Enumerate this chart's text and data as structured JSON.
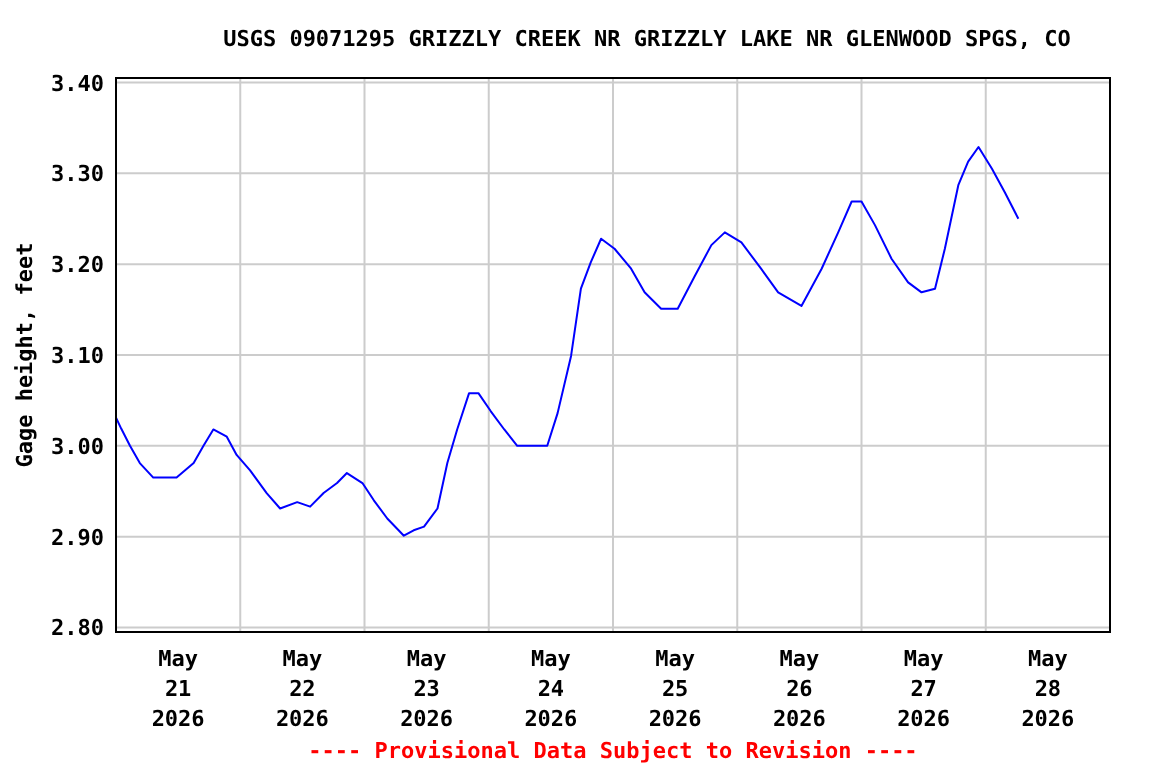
{
  "chart_data": {
    "type": "line",
    "title": "USGS 09071295 GRIZZLY CREEK NR GRIZZLY LAKE NR GLENWOOD SPGS, CO",
    "ylabel": "Gage height, feet",
    "annotations": [
      "---- Provisional Data Subject to Revision ----"
    ],
    "x": [
      "2026-05-21T00:00",
      "2026-05-21T01:00",
      "2026-05-21T02:42",
      "2026-05-21T04:36",
      "2026-05-21T07:12",
      "2026-05-21T11:42",
      "2026-05-21T15:00",
      "2026-05-21T16:54",
      "2026-05-21T18:48",
      "2026-05-21T21:24",
      "2026-05-21T23:18",
      "2026-05-22T01:54",
      "2026-05-22T05:06",
      "2026-05-22T07:42",
      "2026-05-22T11:00",
      "2026-05-22T13:30",
      "2026-05-22T16:06",
      "2026-05-22T18:42",
      "2026-05-22T20:36",
      "2026-05-22T23:36",
      "2026-05-23T01:48",
      "2026-05-23T04:24",
      "2026-05-23T07:36",
      "2026-05-23T09:30",
      "2026-05-23T11:30",
      "2026-05-23T14:06",
      "2026-05-23T16:00",
      "2026-05-23T17:54",
      "2026-05-23T20:12",
      "2026-05-23T22:00",
      "2026-05-24T00:24",
      "2026-05-24T03:00",
      "2026-05-24T05:30",
      "2026-05-24T11:18",
      "2026-05-24T13:18",
      "2026-05-24T15:54",
      "2026-05-24T17:48",
      "2026-05-24T19:42",
      "2026-05-24T21:42",
      "2026-05-25T00:18",
      "2026-05-25T03:30",
      "2026-05-25T06:06",
      "2026-05-25T09:18",
      "2026-05-25T12:30",
      "2026-05-25T15:48",
      "2026-05-25T19:00",
      "2026-05-25T21:36",
      "2026-05-26T00:48",
      "2026-05-26T04:36",
      "2026-05-26T07:54",
      "2026-05-26T12:24",
      "2026-05-26T16:18",
      "2026-05-26T19:30",
      "2026-05-26T22:06",
      "2026-05-27T00:00",
      "2026-05-27T02:36",
      "2026-05-27T05:48",
      "2026-05-27T09:00",
      "2026-05-27T11:36",
      "2026-05-27T14:12",
      "2026-05-27T16:06",
      "2026-05-27T18:42",
      "2026-05-27T20:36",
      "2026-05-27T22:36",
      "2026-05-28T01:12",
      "2026-05-28T03:42",
      "2026-05-28T06:18"
    ],
    "series": [
      {
        "color": "#0000ff",
        "values": [
          3.031,
          3.019,
          3.0,
          2.981,
          2.965,
          2.965,
          2.981,
          3.0,
          3.018,
          3.01,
          2.99,
          2.973,
          2.948,
          2.931,
          2.938,
          2.933,
          2.948,
          2.959,
          2.97,
          2.959,
          2.94,
          2.92,
          2.901,
          2.907,
          2.911,
          2.931,
          2.981,
          3.018,
          3.058,
          3.058,
          3.038,
          3.018,
          3.0,
          3.0,
          3.036,
          3.099,
          3.173,
          3.202,
          3.228,
          3.217,
          3.195,
          3.169,
          3.151,
          3.151,
          3.187,
          3.221,
          3.235,
          3.224,
          3.195,
          3.169,
          3.154,
          3.195,
          3.235,
          3.269,
          3.269,
          3.243,
          3.206,
          3.18,
          3.169,
          3.173,
          3.217,
          3.287,
          3.313,
          3.329,
          3.305,
          3.279,
          3.25
        ]
      }
    ],
    "xlim": [
      "2026-05-21T00:00",
      "2026-05-29T00:00"
    ],
    "xticks": [
      {
        "value": "2026-05-21T00:00",
        "label": null
      },
      {
        "value": "2026-05-21T12:00",
        "label": "May\n21\n2026"
      },
      {
        "value": "2026-05-22T00:00",
        "label": null
      },
      {
        "value": "2026-05-22T12:00",
        "label": "May\n22\n2026"
      },
      {
        "value": "2026-05-23T00:00",
        "label": null
      },
      {
        "value": "2026-05-23T12:00",
        "label": "May\n23\n2026"
      },
      {
        "value": "2026-05-24T00:00",
        "label": null
      },
      {
        "value": "2026-05-24T12:00",
        "label": "May\n24\n2026"
      },
      {
        "value": "2026-05-25T00:00",
        "label": null
      },
      {
        "value": "2026-05-25T12:00",
        "label": "May\n25\n2026"
      },
      {
        "value": "2026-05-26T00:00",
        "label": null
      },
      {
        "value": "2026-05-26T12:00",
        "label": "May\n26\n2026"
      },
      {
        "value": "2026-05-27T00:00",
        "label": null
      },
      {
        "value": "2026-05-27T12:00",
        "label": "May\n27\n2026"
      },
      {
        "value": "2026-05-28T00:00",
        "label": null
      },
      {
        "value": "2026-05-28T12:00",
        "label": "May\n28\n2026"
      },
      {
        "value": "2026-05-29T00:00",
        "label": null
      }
    ],
    "ylim": [
      2.795,
      3.405
    ],
    "yticks": [
      {
        "value": 2.8,
        "label": "2.80"
      },
      {
        "value": 2.9,
        "label": "2.90"
      },
      {
        "value": 3.0,
        "label": "3.00"
      },
      {
        "value": 3.1,
        "label": "3.10"
      },
      {
        "value": 3.2,
        "label": "3.20"
      },
      {
        "value": 3.3,
        "label": "3.30"
      },
      {
        "value": 3.4,
        "label": "3.40"
      }
    ],
    "grid": true,
    "marker": "none",
    "line_style": "solid"
  }
}
